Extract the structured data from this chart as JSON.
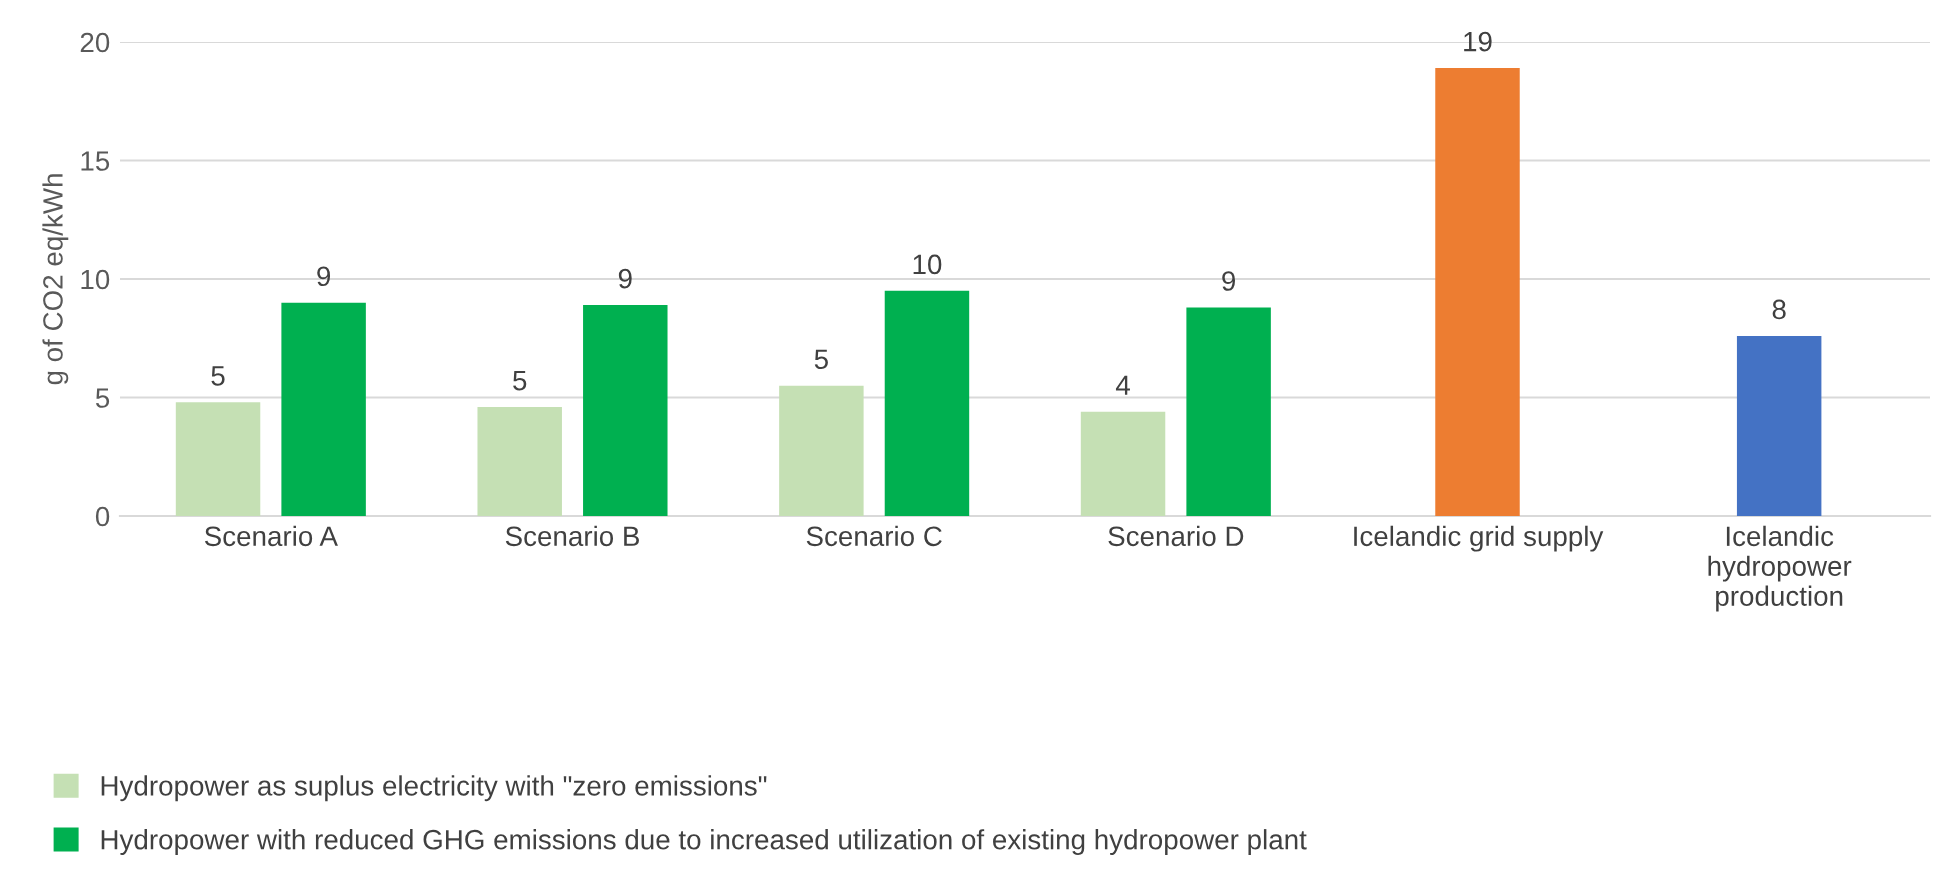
{
  "chart_data": {
    "type": "bar",
    "ylabel": "g of CO2 eq/kWh",
    "categories": [
      "Scenario A",
      "Scenario B",
      "Scenario C",
      "Scenario D",
      "Icelandic grid supply",
      "Icelandic hydropower production"
    ],
    "series": [
      {
        "name": "Hydropower as suplus electricity with \"zero emissions\"",
        "color": "#c5e0b4",
        "values": [
          4.8,
          4.6,
          5.5,
          4.4,
          null,
          null
        ],
        "value_labels": [
          "5",
          "5",
          "5",
          "4",
          null,
          null
        ]
      },
      {
        "name": "Hydropower with reduced GHG emissions due to increased utilization of existing hydropower plant",
        "color": "#00b050",
        "colors": [
          "#00b050",
          "#00b050",
          "#00b050",
          "#00b050",
          "#ed7d31",
          "#4472c4"
        ],
        "values": [
          9.0,
          8.9,
          9.5,
          8.8,
          18.9,
          7.6
        ],
        "value_labels": [
          "9",
          "9",
          "10",
          "9",
          "19",
          "8"
        ]
      }
    ],
    "ylim": [
      0,
      20
    ],
    "yticks": [
      0,
      5,
      10,
      15,
      20
    ],
    "grid": "y",
    "legend": "bottom left"
  }
}
